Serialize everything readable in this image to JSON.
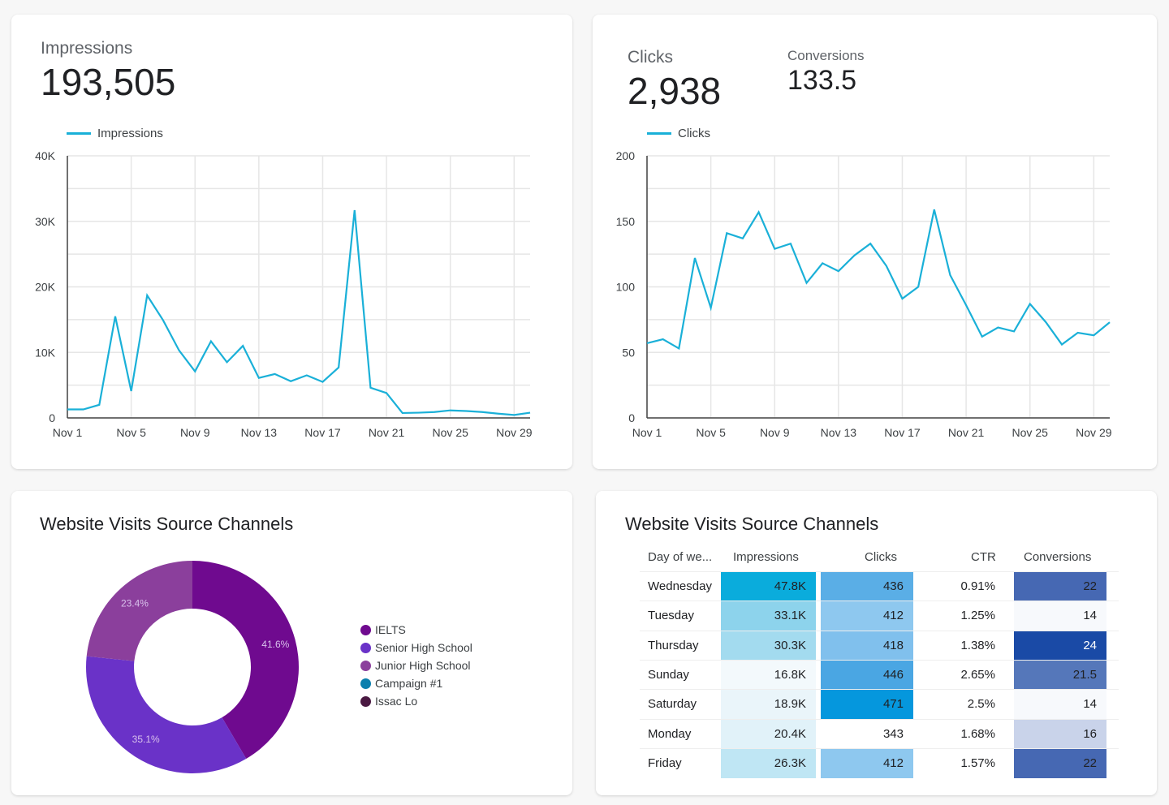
{
  "impressions_card": {
    "label": "Impressions",
    "value": "193,505",
    "legend": "Impressions"
  },
  "clicks_card": {
    "label": "Clicks",
    "value": "2,938",
    "legend": "Clicks",
    "conv_label": "Conversions",
    "conv_value": "133.5"
  },
  "chart_data": [
    {
      "type": "line",
      "series": [
        {
          "name": "Impressions",
          "values": [
            1300,
            1300,
            2000,
            15500,
            4100,
            18700,
            14900,
            10300,
            7100,
            11700,
            8500,
            11000,
            6100,
            6700,
            5600,
            6500,
            5500,
            7700,
            31700,
            4600,
            3800,
            750,
            800,
            900,
            1150,
            1050,
            900,
            650,
            450,
            800
          ]
        }
      ],
      "x": [
        "Nov 1",
        "Nov 2",
        "Nov 3",
        "Nov 4",
        "Nov 5",
        "Nov 6",
        "Nov 7",
        "Nov 8",
        "Nov 9",
        "Nov 10",
        "Nov 11",
        "Nov 12",
        "Nov 13",
        "Nov 14",
        "Nov 15",
        "Nov 16",
        "Nov 17",
        "Nov 18",
        "Nov 19",
        "Nov 20",
        "Nov 21",
        "Nov 22",
        "Nov 23",
        "Nov 24",
        "Nov 25",
        "Nov 26",
        "Nov 27",
        "Nov 28",
        "Nov 29",
        "Nov 30"
      ],
      "xticks": [
        "Nov 1",
        "Nov 5",
        "Nov 9",
        "Nov 13",
        "Nov 17",
        "Nov 21",
        "Nov 25",
        "Nov 29"
      ],
      "yticks": [
        "0",
        "10K",
        "20K",
        "30K",
        "40K"
      ],
      "ylim": [
        0,
        40000
      ],
      "grid": true,
      "legend": "top-left",
      "color": "#1ab0d8"
    },
    {
      "type": "line",
      "series": [
        {
          "name": "Clicks",
          "values": [
            57,
            60,
            53,
            122,
            84,
            141,
            137,
            157,
            129,
            133,
            103,
            118,
            112,
            124,
            133,
            116,
            91,
            100,
            159,
            109,
            86,
            62,
            69,
            66,
            87,
            73,
            56,
            65,
            63,
            73
          ]
        }
      ],
      "x": [
        "Nov 1",
        "Nov 2",
        "Nov 3",
        "Nov 4",
        "Nov 5",
        "Nov 6",
        "Nov 7",
        "Nov 8",
        "Nov 9",
        "Nov 10",
        "Nov 11",
        "Nov 12",
        "Nov 13",
        "Nov 14",
        "Nov 15",
        "Nov 16",
        "Nov 17",
        "Nov 18",
        "Nov 19",
        "Nov 20",
        "Nov 21",
        "Nov 22",
        "Nov 23",
        "Nov 24",
        "Nov 25",
        "Nov 26",
        "Nov 27",
        "Nov 28",
        "Nov 29",
        "Nov 30"
      ],
      "xticks": [
        "Nov 1",
        "Nov 5",
        "Nov 9",
        "Nov 13",
        "Nov 17",
        "Nov 21",
        "Nov 25",
        "Nov 29"
      ],
      "yticks": [
        "0",
        "50",
        "100",
        "150",
        "200"
      ],
      "ylim": [
        0,
        200
      ],
      "grid": true,
      "legend": "top-left",
      "color": "#1ab0d8"
    },
    {
      "type": "pie",
      "title": "Website Visits Source Channels",
      "slices": [
        {
          "name": "IELTS",
          "value": 41.6,
          "label": "41.6%",
          "color": "#6f0a8f"
        },
        {
          "name": "Senior High School",
          "value": 35.1,
          "label": "35.1%",
          "color": "#6a32c8"
        },
        {
          "name": "Junior High School",
          "value": 23.4,
          "label": "23.4%",
          "color": "#8b3f9c"
        },
        {
          "name": "Campaign #1",
          "value": 0,
          "color": "#0b7fae"
        },
        {
          "name": "Issac Lo",
          "value": 0,
          "color": "#4a1942"
        }
      ],
      "legend": "right"
    },
    {
      "type": "table",
      "title": "Website Visits Source Channels",
      "columns": [
        "Day of we...",
        "Impressions",
        "Clicks",
        "CTR",
        "Conversions"
      ],
      "rows": [
        {
          "day": "Wednesday",
          "imp": "47.8K",
          "clicks": "436",
          "ctr": "0.91%",
          "conv": "22",
          "imp_c": "#0aacdc",
          "clk_c": "#5aaee6",
          "conv_c": "#4668b3"
        },
        {
          "day": "Tuesday",
          "imp": "33.1K",
          "clicks": "412",
          "ctr": "1.25%",
          "conv": "14",
          "imp_c": "#8dd3ec",
          "clk_c": "#8ec8ef",
          "conv_c": "#f7f9fc"
        },
        {
          "day": "Thursday",
          "imp": "30.3K",
          "clicks": "418",
          "ctr": "1.38%",
          "conv": "24",
          "imp_c": "#a3dbef",
          "clk_c": "#80c0ed",
          "conv_c": "#1a4aa6"
        },
        {
          "day": "Sunday",
          "imp": "16.8K",
          "clicks": "446",
          "ctr": "2.65%",
          "conv": "21.5",
          "imp_c": "#f3f9fc",
          "clk_c": "#4aa6e3",
          "conv_c": "#5577ba"
        },
        {
          "day": "Saturday",
          "imp": "18.9K",
          "clicks": "471",
          "ctr": "2.5%",
          "conv": "14",
          "imp_c": "#eaf5fa",
          "clk_c": "#0597dd",
          "conv_c": "#f7f9fc"
        },
        {
          "day": "Monday",
          "imp": "20.4K",
          "clicks": "343",
          "ctr": "1.68%",
          "conv": "16",
          "imp_c": "#e1f2f9",
          "clk_c": "#ffffff",
          "conv_c": "#c9d3ea"
        },
        {
          "day": "Friday",
          "imp": "26.3K",
          "clicks": "412",
          "ctr": "1.57%",
          "conv": "22",
          "imp_c": "#bfe6f4",
          "clk_c": "#8ec8ef",
          "conv_c": "#4668b3"
        }
      ]
    }
  ]
}
